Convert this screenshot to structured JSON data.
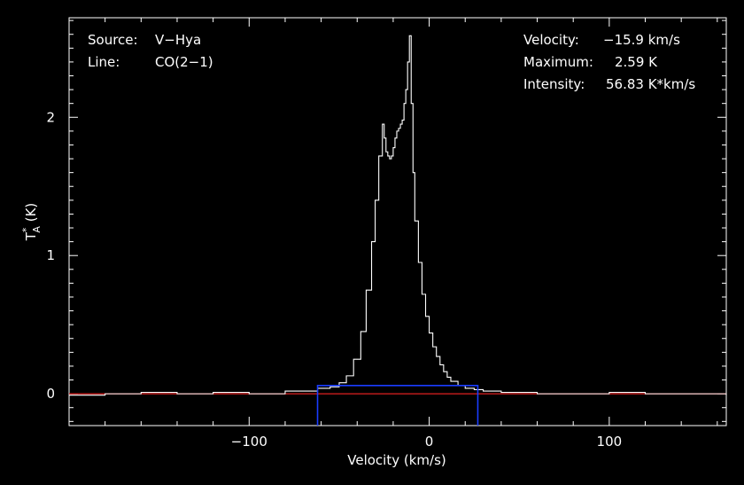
{
  "info": {
    "source_label": "Source:",
    "source_value": "V−Hya",
    "line_label": "Line:",
    "line_value": "CO(2−1)",
    "velocity_label": "Velocity:",
    "velocity_value": "−15.9 km/s",
    "maximum_label": "Maximum:",
    "maximum_value": "2.59 K",
    "intensity_label": "Intensity:",
    "intensity_value": "56.83 K*km/s"
  },
  "chart_data": {
    "type": "line",
    "title": "",
    "xlabel": "Velocity (km/s)",
    "ylabel_main": "T",
    "ylabel_sup": "*",
    "ylabel_sub": "A",
    "ylabel_unit": " (K)",
    "xlim": [
      -200,
      165
    ],
    "ylim": [
      -0.23,
      2.72
    ],
    "xticks": [
      -100,
      0,
      100
    ],
    "xtick_labels": [
      "−100",
      "0",
      "100"
    ],
    "yticks": [
      0,
      1,
      2
    ],
    "ytick_labels": [
      "0",
      "1",
      "2"
    ],
    "baseline": 0,
    "integration_window": {
      "vmin": -62,
      "vmax": 27,
      "level": 0.06
    },
    "series": [
      {
        "style": "histogram",
        "x": [
          -200,
          -180,
          -160,
          -140,
          -120,
          -100,
          -80,
          -70,
          -62,
          -55,
          -50,
          -46,
          -42,
          -38,
          -35,
          -32,
          -30,
          -28,
          -26,
          -25,
          -24,
          -23,
          -22,
          -21,
          -20,
          -19,
          -18,
          -17,
          -16,
          -15,
          -14,
          -13,
          -12,
          -11,
          -10,
          -9,
          -8,
          -6,
          -4,
          -2,
          0,
          2,
          4,
          6,
          8,
          10,
          12,
          16,
          20,
          25,
          30,
          40,
          60,
          80,
          100,
          120,
          140,
          165
        ],
        "y": [
          -0.01,
          0.0,
          0.01,
          0.0,
          0.01,
          0.0,
          0.02,
          0.02,
          0.04,
          0.05,
          0.08,
          0.13,
          0.25,
          0.45,
          0.75,
          1.1,
          1.4,
          1.72,
          1.95,
          1.85,
          1.75,
          1.72,
          1.7,
          1.72,
          1.78,
          1.85,
          1.9,
          1.92,
          1.95,
          1.98,
          2.1,
          2.2,
          2.4,
          2.59,
          2.1,
          1.6,
          1.25,
          0.95,
          0.72,
          0.56,
          0.44,
          0.34,
          0.27,
          0.21,
          0.16,
          0.12,
          0.09,
          0.06,
          0.04,
          0.03,
          0.02,
          0.01,
          0.0,
          0.0,
          0.01,
          0.0,
          0.0,
          -0.01
        ]
      }
    ]
  }
}
